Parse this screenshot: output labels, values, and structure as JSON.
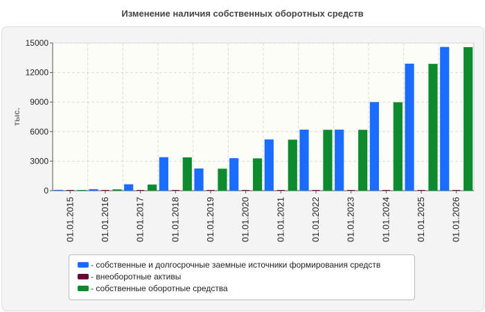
{
  "chart_data": {
    "type": "bar",
    "title": "Изменение наличия собственных оборотных средств",
    "ylabel": "тыс.",
    "xlabel": "",
    "ylim": [
      0,
      15000
    ],
    "yticks": [
      0,
      3000,
      6000,
      9000,
      12000,
      15000
    ],
    "grid": true,
    "legend_position": "bottom",
    "categories": [
      "01.01.2015",
      "01.01.2016",
      "01.01.2017",
      "01.01.2018",
      "01.01.2019",
      "01.01.2020",
      "01.01.2021",
      "01.01.2022",
      "01.01.2023",
      "01.01.2024",
      "01.01.2025",
      "01.01.2026"
    ],
    "series": [
      {
        "name": "- собственные и долгосрочные заемные источники формирования средств",
        "color": "#1a6cff",
        "values": [
          80,
          150,
          650,
          3400,
          2250,
          3300,
          5200,
          6200,
          6200,
          9000,
          12900,
          14600
        ]
      },
      {
        "name": "- внеоборотные активы",
        "color": "#6b0035",
        "values": [
          30,
          30,
          30,
          30,
          30,
          30,
          30,
          30,
          30,
          30,
          30,
          30
        ]
      },
      {
        "name": "- собственные оборотные средства",
        "color": "#0d8a2e",
        "values": [
          60,
          130,
          620,
          3380,
          2230,
          3280,
          5180,
          6180,
          6180,
          8980,
          12880,
          14580
        ]
      }
    ]
  }
}
